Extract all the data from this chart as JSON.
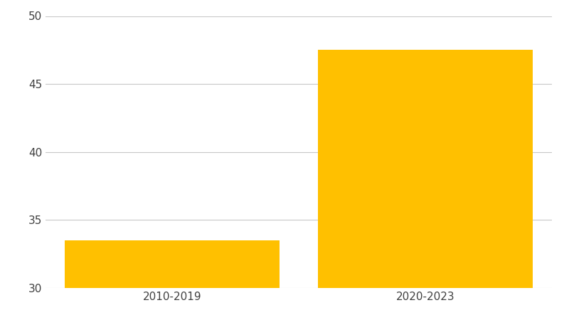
{
  "categories": [
    "2010-2019",
    "2020-2023"
  ],
  "values": [
    33.5,
    47.5
  ],
  "bar_color": "#FFC000",
  "bar_width": 0.85,
  "ylim": [
    30,
    50
  ],
  "yticks": [
    30,
    35,
    40,
    45,
    50
  ],
  "background_color": "#ffffff",
  "grid_color": "#c8c8c8",
  "tick_label_fontsize": 11,
  "tick_label_color": "#404040",
  "xlim": [
    -0.5,
    1.5
  ]
}
